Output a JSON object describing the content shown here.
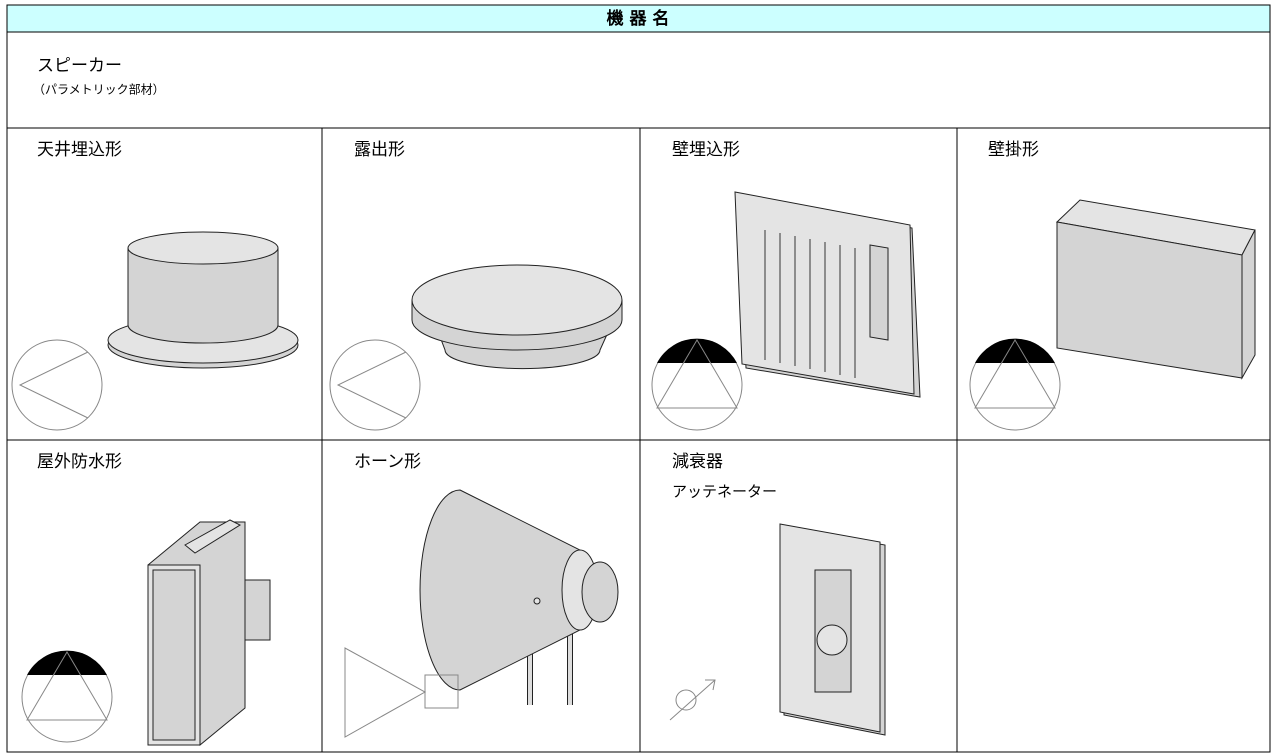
{
  "header": {
    "title": "機 器 名"
  },
  "category": {
    "name": "スピーカー",
    "note": "（パラメトリック部材）"
  },
  "cells": [
    {
      "label": "天井埋込形"
    },
    {
      "label": "露出形"
    },
    {
      "label": "壁埋込形"
    },
    {
      "label": "壁掛形"
    },
    {
      "label": "屋外防水形"
    },
    {
      "label": "ホーン形"
    },
    {
      "label": "減衰器",
      "sublabel": "アッテネーター"
    }
  ]
}
